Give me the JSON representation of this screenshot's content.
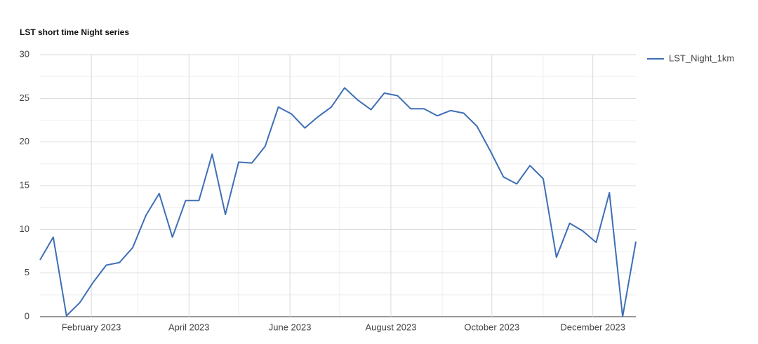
{
  "chart_data": {
    "type": "line",
    "title": "LST short time Night series",
    "x": [
      "2023-01-01",
      "2023-01-09",
      "2023-01-17",
      "2023-01-25",
      "2023-02-02",
      "2023-02-10",
      "2023-02-18",
      "2023-02-26",
      "2023-03-06",
      "2023-03-14",
      "2023-03-22",
      "2023-03-30",
      "2023-04-07",
      "2023-04-15",
      "2023-04-23",
      "2023-05-01",
      "2023-05-09",
      "2023-05-17",
      "2023-05-25",
      "2023-06-02",
      "2023-06-10",
      "2023-06-18",
      "2023-06-26",
      "2023-07-04",
      "2023-07-12",
      "2023-07-20",
      "2023-07-28",
      "2023-08-05",
      "2023-08-13",
      "2023-08-21",
      "2023-08-29",
      "2023-09-06",
      "2023-09-14",
      "2023-09-22",
      "2023-09-30",
      "2023-10-08",
      "2023-10-16",
      "2023-10-24",
      "2023-11-01",
      "2023-11-09",
      "2023-11-17",
      "2023-11-25",
      "2023-12-03",
      "2023-12-11",
      "2023-12-19",
      "2023-12-27"
    ],
    "series": [
      {
        "name": "LST_Night_1km",
        "color": "#3e6fb5",
        "values": [
          6.5,
          9.1,
          0.1,
          1.6,
          3.9,
          5.9,
          6.2,
          7.9,
          11.6,
          14.1,
          9.1,
          13.3,
          13.3,
          18.6,
          11.7,
          17.7,
          17.6,
          19.5,
          24.0,
          23.2,
          21.6,
          22.9,
          24.0,
          26.2,
          24.8,
          23.7,
          25.6,
          25.3,
          23.8,
          23.8,
          23.0,
          23.6,
          23.3,
          21.8,
          19.0,
          16.0,
          15.2,
          17.3,
          15.8,
          6.8,
          10.7,
          9.8,
          8.5,
          14.2,
          0.0,
          8.6
        ]
      }
    ],
    "xlim": [
      "2023-01-01",
      "2023-12-27"
    ],
    "xticks": [
      {
        "value": "2023-02-01",
        "label": "February 2023"
      },
      {
        "value": "2023-04-01",
        "label": "April 2023"
      },
      {
        "value": "2023-06-01",
        "label": "June 2023"
      },
      {
        "value": "2023-08-01",
        "label": "August 2023"
      },
      {
        "value": "2023-10-01",
        "label": "October 2023"
      },
      {
        "value": "2023-12-01",
        "label": "December 2023"
      }
    ],
    "x_minor_grid": [
      "2023-03-01",
      "2023-05-01",
      "2023-07-01",
      "2023-09-01",
      "2023-11-01"
    ],
    "ylim": [
      0,
      30
    ],
    "yticks": [
      0,
      5,
      10,
      15,
      20,
      25,
      30
    ],
    "y_minor_grid": [
      2.5,
      7.5,
      12.5,
      17.5,
      22.5,
      27.5
    ],
    "grid": true,
    "legend": "right"
  }
}
